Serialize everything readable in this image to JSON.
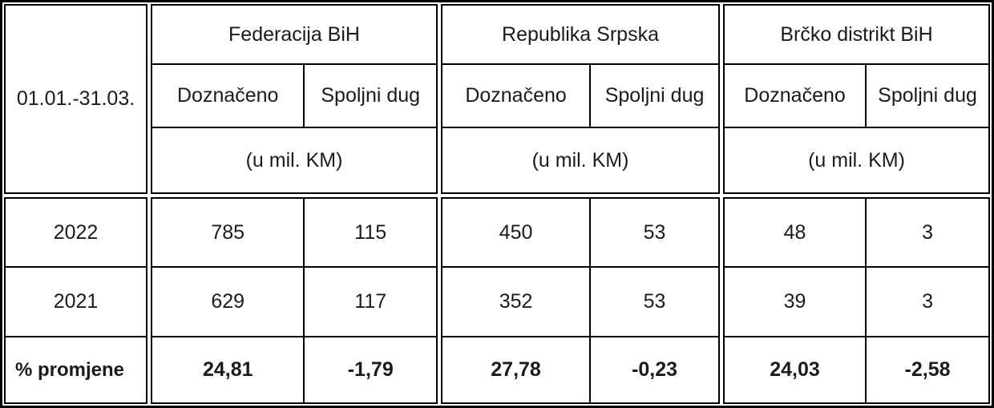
{
  "table": {
    "period_label": "01.01.-31.03.",
    "row_labels": [
      "2022",
      "2021",
      "% promjene"
    ],
    "groups": [
      {
        "name": "Federacija BiH",
        "doznaceno_label": "Doznačeno",
        "spoljni_label": "Spoljni dug",
        "unit_label": "(u mil. KM)",
        "values_2022": [
          "785",
          "115"
        ],
        "values_2021": [
          "629",
          "117"
        ],
        "change": [
          "24,81",
          "-1,79"
        ]
      },
      {
        "name": "Republika Srpska",
        "doznaceno_label": "Doznačeno",
        "spoljni_label": "Spoljni dug",
        "unit_label": "(u mil. KM)",
        "values_2022": [
          "450",
          "53"
        ],
        "values_2021": [
          "352",
          "53"
        ],
        "change": [
          "27,78",
          "-0,23"
        ]
      },
      {
        "name": "Brčko distrikt BiH",
        "doznaceno_label": "Doznačeno",
        "spoljni_label": "Spoljni dug",
        "unit_label": "(u mil. KM)",
        "values_2022": [
          "48",
          "3"
        ],
        "values_2021": [
          "39",
          "3"
        ],
        "change": [
          "24,03",
          "-2,58"
        ]
      }
    ],
    "colors": {
      "border": "#000000",
      "text": "#1b1b1b",
      "background": "#ffffff"
    }
  }
}
